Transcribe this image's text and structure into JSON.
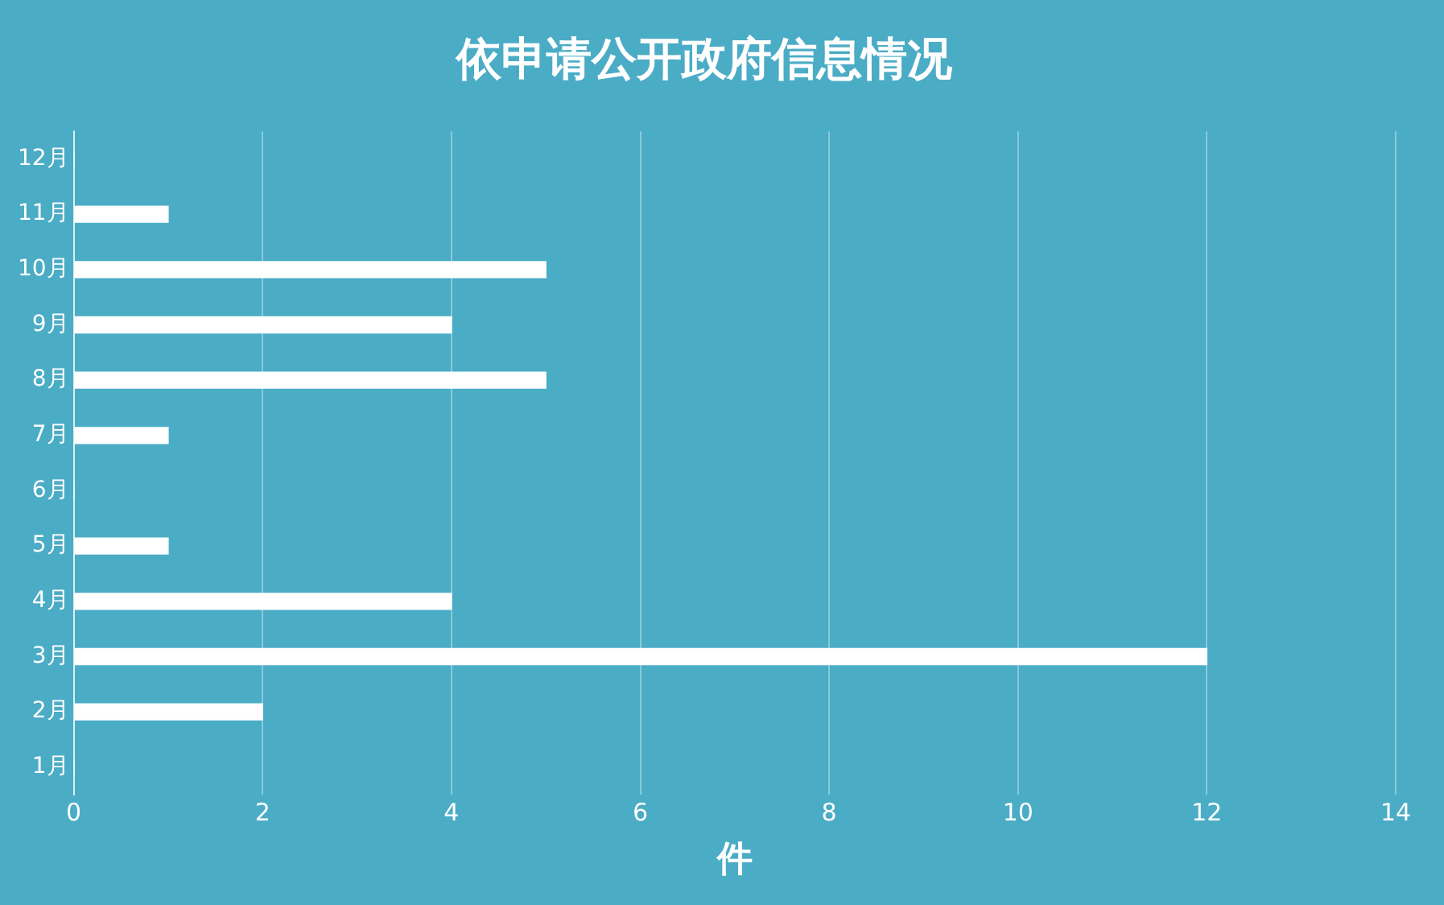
{
  "chart_data": {
    "type": "bar",
    "orientation": "horizontal",
    "title": "依申请公开政府信息情况",
    "xlabel": "件",
    "categories": [
      "12月",
      "11月",
      "10月",
      "9月",
      "8月",
      "7月",
      "6月",
      "5月",
      "4月",
      "3月",
      "2月",
      "1月"
    ],
    "values": [
      0,
      1,
      5,
      4,
      5,
      1,
      0,
      1,
      4,
      12,
      2,
      0
    ],
    "color": "#ffffff",
    "xlim": [
      0,
      14
    ],
    "xticks": [
      0,
      2,
      4,
      6,
      8,
      10,
      12,
      14
    ],
    "grid": "x",
    "legend": false
  }
}
